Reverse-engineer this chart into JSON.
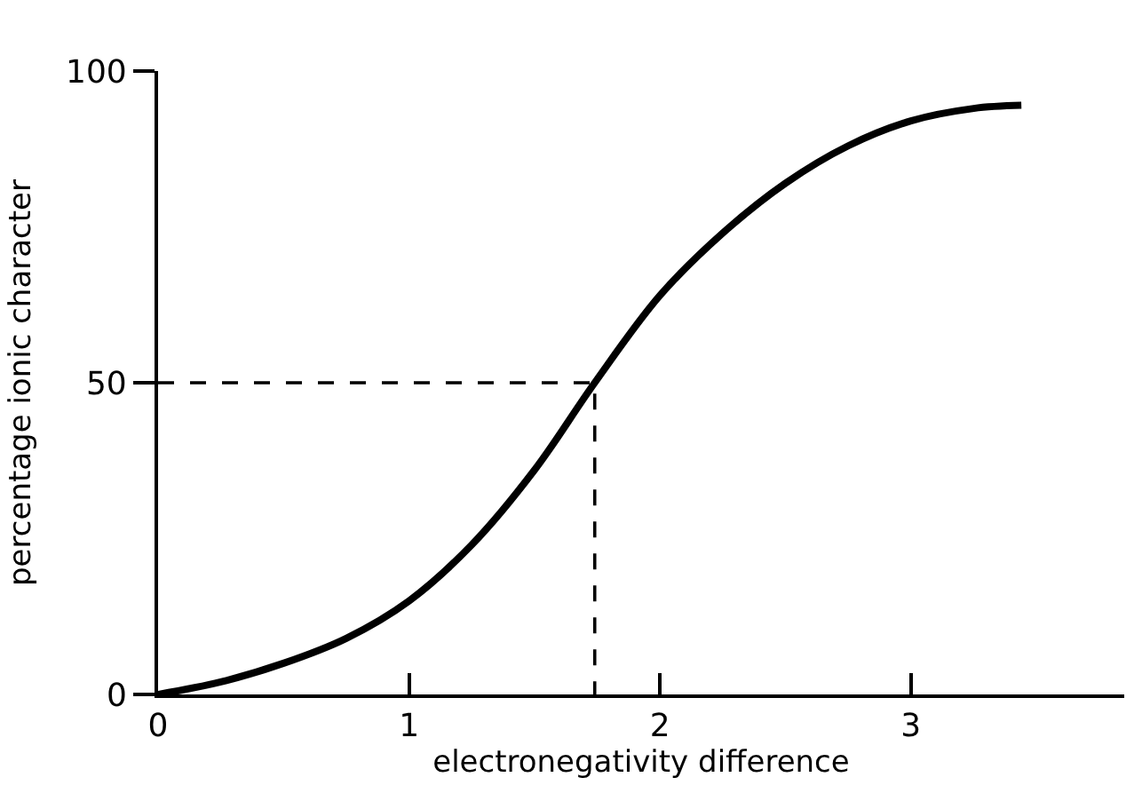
{
  "chart_data": {
    "type": "line",
    "xlabel": "electronegativity difference",
    "ylabel": "percentage ionic character",
    "xlim": [
      0,
      3.85
    ],
    "ylim": [
      0,
      100
    ],
    "xticks": [
      0,
      1,
      2,
      3
    ],
    "yticks": [
      0,
      50,
      100
    ],
    "marker": "none",
    "series": [
      {
        "color": "#000000",
        "x": [
          0,
          0.25,
          0.5,
          0.75,
          1,
          1.25,
          1.5,
          1.74,
          2,
          2.25,
          2.5,
          2.75,
          3,
          3.25,
          3.44
        ],
        "values": [
          0,
          2,
          5,
          9,
          15,
          24,
          36,
          50,
          64,
          74,
          82,
          88,
          92,
          94,
          94.5
        ],
        "line_style": "solid"
      },
      {
        "color": "#000000",
        "x": [
          0,
          1.74,
          1.74
        ],
        "values": [
          50,
          50,
          0
        ],
        "line_style": "dashed"
      }
    ]
  }
}
